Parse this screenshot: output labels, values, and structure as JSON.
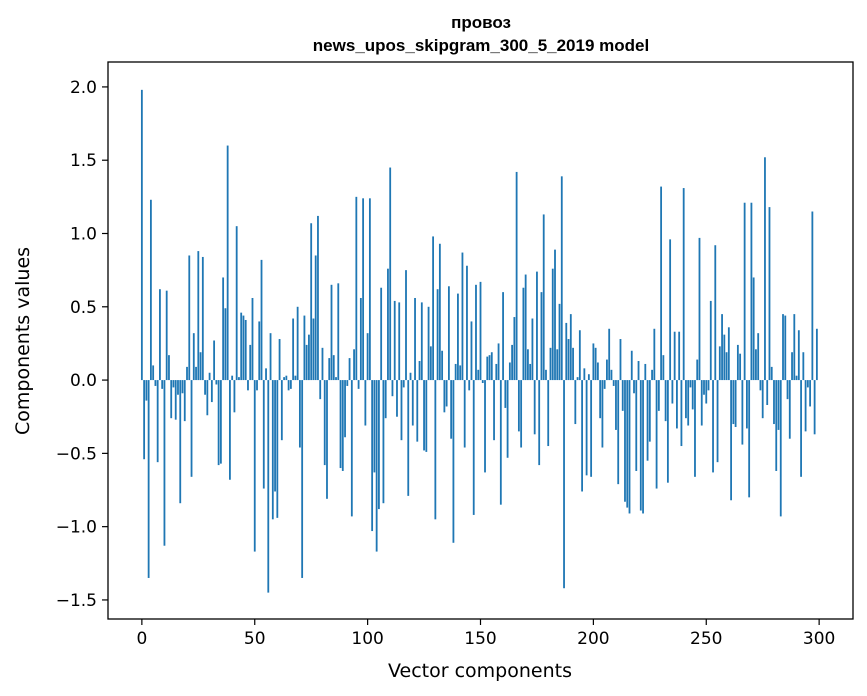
{
  "chart_data": {
    "type": "bar",
    "title": [
      "провоз",
      "news_upos_skipgram_300_5_2019 model"
    ],
    "xlabel": "Vector components",
    "ylabel": "Components values",
    "xlim": [
      -15,
      315
    ],
    "ylim": [
      -1.63,
      2.17
    ],
    "xticks": [
      0,
      50,
      100,
      150,
      200,
      250,
      300
    ],
    "xtick_labels": [
      "0",
      "50",
      "100",
      "150",
      "200",
      "250",
      "300"
    ],
    "yticks": [
      -1.5,
      -1.0,
      -0.5,
      0.0,
      0.5,
      1.0,
      1.5,
      2.0
    ],
    "ytick_labels": [
      "−1.5",
      "−1.0",
      "−0.5",
      "0.0",
      "0.5",
      "1.0",
      "1.5",
      "2.0"
    ],
    "grid": false,
    "bar_color": "#1f77b4",
    "values": [
      1.98,
      -0.54,
      -0.14,
      -1.35,
      1.23,
      0.1,
      -0.04,
      -0.56,
      0.62,
      -0.06,
      -1.13,
      0.61,
      0.17,
      -0.26,
      -0.05,
      -0.27,
      -0.1,
      -0.84,
      -0.09,
      -0.28,
      0.09,
      0.85,
      -0.66,
      0.32,
      0.09,
      0.88,
      0.19,
      0.84,
      -0.1,
      -0.24,
      0.05,
      -0.15,
      0.27,
      -0.03,
      -0.58,
      -0.57,
      0.7,
      0.49,
      1.6,
      -0.68,
      0.03,
      -0.22,
      1.05,
      0.02,
      0.46,
      0.44,
      0.41,
      -0.07,
      0.24,
      0.56,
      -1.17,
      -0.07,
      0.4,
      0.82,
      -0.74,
      0.08,
      -1.45,
      0.32,
      -0.95,
      -0.76,
      -0.94,
      0.28,
      -0.41,
      0.02,
      0.03,
      -0.07,
      -0.06,
      0.42,
      0.03,
      0.5,
      -0.46,
      -1.35,
      0.44,
      0.24,
      0.31,
      1.07,
      0.42,
      0.85,
      1.12,
      -0.13,
      0.22,
      -0.58,
      -0.81,
      0.15,
      0.65,
      0.17,
      0.02,
      0.66,
      -0.6,
      -0.62,
      -0.39,
      -0.04,
      0.15,
      -0.93,
      0.21,
      1.25,
      -0.06,
      0.56,
      1.24,
      -0.31,
      0.32,
      1.24,
      -1.03,
      -0.63,
      -1.17,
      -0.88,
      0.63,
      -0.84,
      -0.26,
      0.76,
      1.45,
      -0.11,
      0.54,
      -0.25,
      0.53,
      -0.41,
      -0.05,
      0.75,
      -0.79,
      0.05,
      -0.31,
      0.56,
      -0.42,
      0.13,
      0.53,
      -0.48,
      -0.49,
      0.5,
      0.23,
      0.98,
      -0.95,
      0.62,
      0.93,
      0.2,
      -0.22,
      -0.18,
      0.64,
      -0.4,
      -1.11,
      0.11,
      0.59,
      0.1,
      0.87,
      -0.46,
      0.78,
      -0.07,
      0.4,
      -0.92,
      0.65,
      0.07,
      0.67,
      -0.02,
      -0.63,
      0.16,
      0.17,
      0.19,
      -0.41,
      0.11,
      0.25,
      -0.85,
      0.6,
      -0.19,
      -0.53,
      0.12,
      0.24,
      0.43,
      1.42,
      -0.35,
      -0.46,
      0.63,
      0.72,
      0.21,
      0.11,
      0.42,
      -0.37,
      0.74,
      -0.58,
      0.6,
      1.13,
      0.07,
      -0.45,
      0.22,
      0.76,
      0.89,
      0.21,
      0.52,
      1.39,
      -1.42,
      0.39,
      0.28,
      0.45,
      0.22,
      -0.3,
      0.02,
      0.34,
      -0.76,
      0.08,
      -0.65,
      0.04,
      -0.66,
      0.25,
      0.22,
      0.12,
      -0.26,
      -0.46,
      -0.06,
      0.14,
      0.35,
      0.07,
      -0.04,
      -0.34,
      -0.71,
      0.28,
      -0.21,
      -0.83,
      -0.87,
      -0.91,
      0.2,
      -0.09,
      -0.62,
      0.13,
      -0.89,
      -0.91,
      0.11,
      -0.55,
      -0.42,
      0.07,
      0.35,
      -0.74,
      -0.21,
      1.32,
      0.17,
      -0.28,
      -0.7,
      0.96,
      -0.16,
      0.33,
      -0.33,
      0.33,
      -0.45,
      1.31,
      -0.26,
      -0.31,
      -0.05,
      -0.2,
      -0.66,
      0.14,
      0.97,
      -0.31,
      -0.1,
      -0.16,
      -0.07,
      0.54,
      -0.63,
      0.92,
      -0.56,
      0.23,
      0.45,
      0.31,
      0.19,
      0.36,
      -0.82,
      -0.3,
      -0.32,
      0.24,
      0.18,
      -0.44,
      1.21,
      -0.33,
      -0.8,
      1.21,
      0.7,
      0.21,
      0.32,
      -0.07,
      -0.26,
      1.52,
      -0.17,
      1.18,
      0.09,
      -0.3,
      -0.62,
      -0.34,
      -0.93,
      0.45,
      0.44,
      -0.13,
      -0.4,
      0.19,
      0.45,
      0.03,
      0.34,
      -0.66,
      0.19,
      -0.35,
      -0.05,
      -0.18,
      1.15,
      -0.37,
      0.35
    ]
  }
}
